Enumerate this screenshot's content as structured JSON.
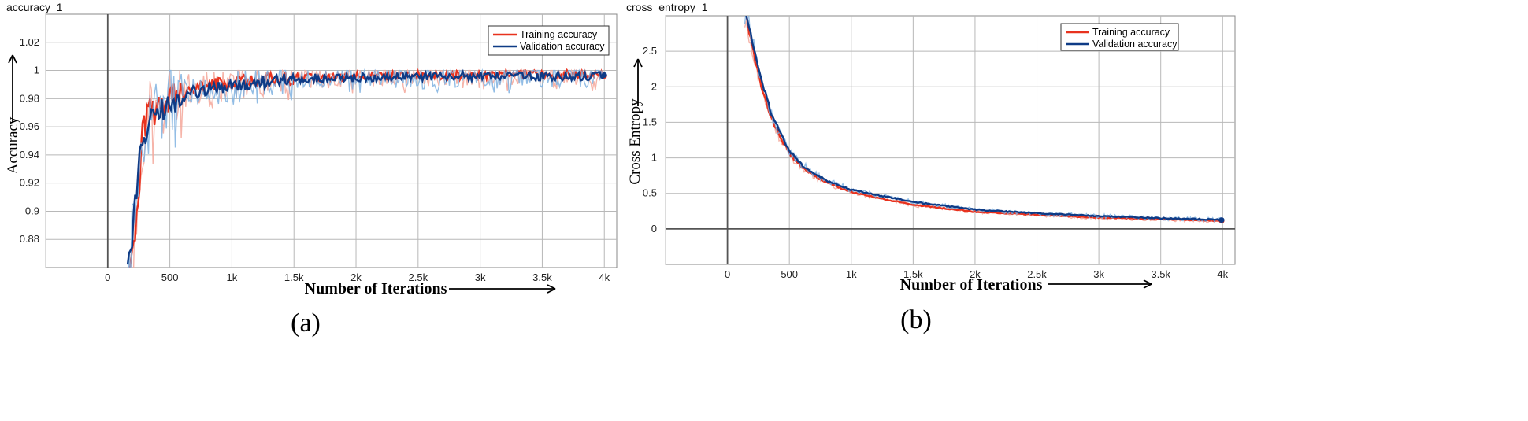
{
  "chart_data": [
    {
      "type": "line",
      "title": "accuracy_1",
      "xlabel": "Number of Iterations",
      "ylabel": "Accuracy",
      "caption": "(a)",
      "xlim": [
        -500,
        4100
      ],
      "ylim": [
        0.86,
        1.04
      ],
      "xticks": [
        0,
        500,
        1000,
        1500,
        2000,
        2500,
        3000,
        3500,
        4000
      ],
      "xtick_labels": [
        "0",
        "500",
        "1k",
        "1.5k",
        "2k",
        "2.5k",
        "3k",
        "3.5k",
        "4k"
      ],
      "yticks": [
        0.88,
        0.9,
        0.92,
        0.94,
        0.96,
        0.98,
        1,
        1.02
      ],
      "ytick_labels": [
        "0.88",
        "0.9",
        "0.92",
        "0.94",
        "0.96",
        "0.98",
        "1",
        "1.02"
      ],
      "legend_position": "top-right",
      "series": [
        {
          "name": "Training accuracy",
          "color": "#e8321e",
          "raw_color": "#f4a79a",
          "x": [
            160,
            200,
            240,
            280,
            320,
            360,
            400,
            450,
            500,
            600,
            700,
            800,
            900,
            1000,
            1200,
            1400,
            1600,
            1800,
            2000,
            2200,
            2500,
            3000,
            3500,
            4000
          ],
          "y": [
            0.855,
            0.87,
            0.905,
            0.955,
            0.968,
            0.972,
            0.97,
            0.975,
            0.98,
            0.984,
            0.987,
            0.989,
            0.99,
            0.991,
            0.993,
            0.994,
            0.995,
            0.995,
            0.996,
            0.996,
            0.996,
            0.997,
            0.997,
            0.997
          ]
        },
        {
          "name": "Validation accuracy",
          "color": "#0e3b86",
          "raw_color": "#7fb2e0",
          "x": [
            160,
            200,
            240,
            280,
            320,
            360,
            400,
            450,
            500,
            600,
            700,
            800,
            900,
            1000,
            1200,
            1400,
            1600,
            1800,
            2000,
            2200,
            2500,
            3000,
            3500,
            4000
          ],
          "y": [
            0.86,
            0.885,
            0.925,
            0.95,
            0.962,
            0.968,
            0.968,
            0.972,
            0.978,
            0.982,
            0.985,
            0.987,
            0.988,
            0.989,
            0.991,
            0.993,
            0.994,
            0.995,
            0.995,
            0.995,
            0.996,
            0.996,
            0.996,
            0.996
          ]
        }
      ]
    },
    {
      "type": "line",
      "title": "cross_entropy_1",
      "xlabel": "Number of Iterations",
      "ylabel": "Cross Entropy",
      "caption": "(b)",
      "xlim": [
        -500,
        4100
      ],
      "ylim": [
        -0.5,
        3.0
      ],
      "xticks": [
        0,
        500,
        1000,
        1500,
        2000,
        2500,
        3000,
        3500,
        4000
      ],
      "xtick_labels": [
        "0",
        "500",
        "1k",
        "1.5k",
        "2k",
        "2.5k",
        "3k",
        "3.5k",
        "4k"
      ],
      "yticks": [
        0,
        0.5,
        1,
        1.5,
        2,
        2.5
      ],
      "ytick_labels": [
        "0",
        "0.5",
        "1",
        "1.5",
        "2",
        "2.5"
      ],
      "legend_position": "top-right",
      "series": [
        {
          "name": "Training accuracy",
          "color": "#e8321e",
          "raw_color": "#f4a79a",
          "x": [
            140,
            180,
            220,
            260,
            300,
            350,
            400,
            500,
            600,
            700,
            800,
            1000,
            1200,
            1500,
            2000,
            2500,
            3000,
            3500,
            4000
          ],
          "y": [
            3.05,
            2.75,
            2.4,
            2.1,
            1.85,
            1.58,
            1.38,
            1.06,
            0.87,
            0.75,
            0.65,
            0.52,
            0.44,
            0.34,
            0.24,
            0.2,
            0.16,
            0.14,
            0.11
          ]
        },
        {
          "name": "Validation accuracy",
          "color": "#0e3b86",
          "raw_color": "#7fb2e0",
          "x": [
            140,
            180,
            220,
            260,
            300,
            350,
            400,
            500,
            600,
            700,
            800,
            1000,
            1200,
            1500,
            2000,
            2500,
            3000,
            3500,
            4000
          ],
          "y": [
            3.1,
            2.85,
            2.5,
            2.2,
            1.95,
            1.65,
            1.45,
            1.1,
            0.9,
            0.78,
            0.68,
            0.55,
            0.48,
            0.38,
            0.27,
            0.22,
            0.18,
            0.15,
            0.13
          ]
        }
      ]
    }
  ]
}
